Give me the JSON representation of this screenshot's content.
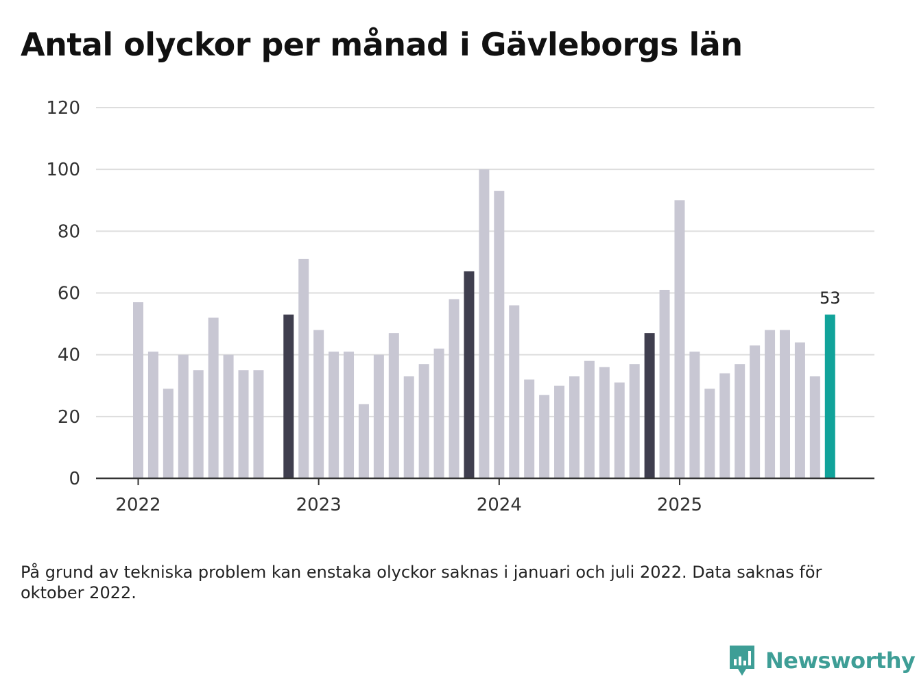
{
  "title": "Antal olyckor per månad i Gävleborgs län",
  "footnote": "På grund av tekniska problem kan enstaka olyckor saknas i januari och juli 2022. Data saknas för oktober 2022.",
  "brand": "Newsworthy",
  "colors": {
    "bar_default": "#c8c7d3",
    "bar_highlight": "#3f3e4e",
    "bar_current": "#11a39a",
    "grid": "#dddddd",
    "axis": "#333333",
    "brand": "#3e9e96"
  },
  "chart_data": {
    "type": "bar",
    "title": "Antal olyckor per månad i Gävleborgs län",
    "xlabel": "",
    "ylabel": "",
    "ylim": [
      0,
      120
    ],
    "yticks": [
      0,
      20,
      40,
      60,
      80,
      100,
      120
    ],
    "xticks": [
      {
        "label": "2022",
        "month": "2022-01"
      },
      {
        "label": "2023",
        "month": "2023-01"
      },
      {
        "label": "2024",
        "month": "2024-01"
      },
      {
        "label": "2025",
        "month": "2025-01"
      }
    ],
    "categories": [
      "2022-01",
      "2022-02",
      "2022-03",
      "2022-04",
      "2022-05",
      "2022-06",
      "2022-07",
      "2022-08",
      "2022-09",
      "2022-10",
      "2022-11",
      "2022-12",
      "2023-01",
      "2023-02",
      "2023-03",
      "2023-04",
      "2023-05",
      "2023-06",
      "2023-07",
      "2023-08",
      "2023-09",
      "2023-10",
      "2023-11",
      "2023-12",
      "2024-01",
      "2024-02",
      "2024-03",
      "2024-04",
      "2024-05",
      "2024-06",
      "2024-07",
      "2024-08",
      "2024-09",
      "2024-10",
      "2024-11",
      "2024-12",
      "2025-01",
      "2025-02",
      "2025-03",
      "2025-04",
      "2025-05",
      "2025-06",
      "2025-07",
      "2025-08",
      "2025-09",
      "2025-10",
      "2025-11"
    ],
    "values": [
      57,
      41,
      29,
      40,
      35,
      52,
      40,
      35,
      35,
      null,
      53,
      71,
      48,
      41,
      41,
      24,
      40,
      47,
      33,
      37,
      42,
      58,
      67,
      100,
      93,
      56,
      32,
      27,
      30,
      33,
      38,
      36,
      31,
      37,
      47,
      61,
      90,
      41,
      29,
      34,
      37,
      43,
      48,
      48,
      44,
      33,
      53
    ],
    "highlight": [
      "2022-11",
      "2023-11",
      "2024-11"
    ],
    "current": "2025-11",
    "value_label": "53"
  }
}
